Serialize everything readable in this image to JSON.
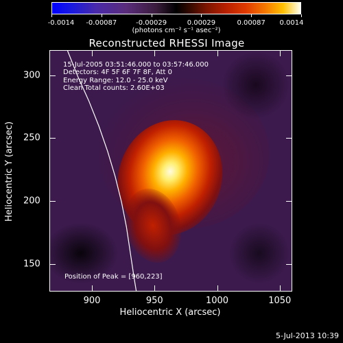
{
  "colorbar": {
    "ticks": [
      "-0.0014",
      "-0.00087",
      "-0.00029",
      "0.00029",
      "0.00087",
      "0.0014"
    ],
    "unit": "(photons cm⁻² s⁻¹ asec⁻²)"
  },
  "title": "Reconstructed RHESSI Image",
  "info": {
    "time": "15-Jul-2005 03:51:46.000 to 03:57:46.000",
    "detectors": "Detectors: 4F 5F 6F 7F 8F, Att 0",
    "energy": "Energy Range: 12.0 - 25.0 keV",
    "clean": "Clean    Total counts: 2.60E+03"
  },
  "peak": "Position of Peak = [960,223]",
  "footer_date": "5-Jul-2013 10:39",
  "colors": {
    "background": "#000000",
    "text": "#ffffff"
  },
  "chart_data": {
    "type": "heatmap",
    "title": "Reconstructed RHESSI Image",
    "xlabel": "Heliocentric X (arcsec)",
    "ylabel": "Heliocentric Y (arcsec)",
    "xlim": [
      866,
      1060
    ],
    "ylim": [
      128,
      320
    ],
    "xticks": [
      "900",
      "950",
      "1000",
      "1050"
    ],
    "yticks": [
      "150",
      "200",
      "250",
      "300"
    ],
    "xtick_values": [
      900,
      950,
      1000,
      1050
    ],
    "ytick_values": [
      150,
      200,
      250,
      300
    ],
    "colorbar_range": [
      -0.0014,
      0.0014
    ],
    "peak": {
      "x": 960,
      "y": 223
    },
    "limb_curve": [
      [
        880,
        320
      ],
      [
        888,
        300
      ],
      [
        897,
        280
      ],
      [
        905,
        260
      ],
      [
        912,
        240
      ],
      [
        918,
        220
      ],
      [
        923,
        200
      ],
      [
        927,
        180
      ],
      [
        930,
        160
      ],
      [
        933,
        140
      ],
      [
        935,
        128
      ]
    ]
  }
}
